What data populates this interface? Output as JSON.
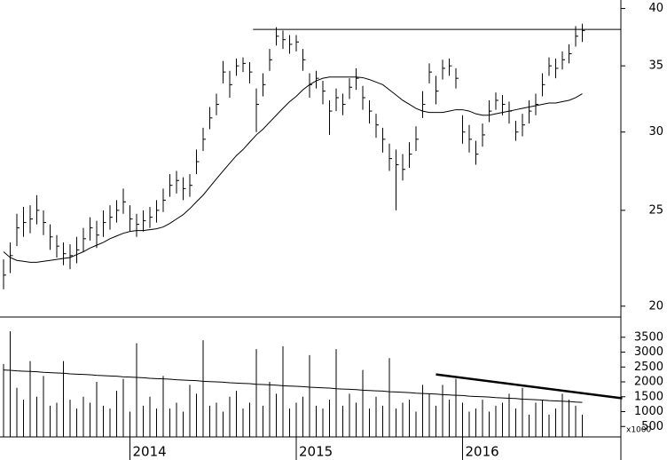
{
  "chart_data": [
    {
      "type": "ohlc",
      "log": true,
      "color": "#000000",
      "ylim": [
        19.5,
        40.8
      ],
      "yticks": [
        20,
        25,
        30,
        35,
        40
      ],
      "high": [
        22.3,
        23.2,
        24.8,
        25.2,
        25.3,
        25.9,
        25,
        24.2,
        23.6,
        23.2,
        23.1,
        23.5,
        24,
        24.6,
        24.4,
        25,
        25.3,
        25.6,
        26.3,
        25.3,
        24.8,
        25,
        25.2,
        25.6,
        26.3,
        27.2,
        27.4,
        27,
        27.2,
        28.8,
        30.3,
        31.8,
        32.8,
        35.4,
        34.6,
        35.6,
        35.7,
        35.3,
        33.2,
        34.4,
        36.4,
        38.3,
        38,
        37.6,
        37.6,
        36.4,
        34.4,
        34.6,
        33.8,
        32.3,
        33.2,
        32.8,
        34,
        34.8,
        33.4,
        32.3,
        31.3,
        30.3,
        29.2,
        28.8,
        28.5,
        29.3,
        30.4,
        33,
        35.2,
        34.2,
        35.5,
        35.6,
        34.8,
        31.2,
        30.5,
        29.4,
        30.6,
        32.3,
        32.9,
        32.7,
        32.2,
        30.8,
        31.3,
        32.3,
        32.8,
        34.4,
        35.7,
        35.6,
        36.2,
        36.8,
        38.4,
        38.6
      ],
      "low": [
        20.8,
        21.6,
        23,
        23.5,
        23.7,
        24.2,
        23.6,
        22.8,
        22.4,
        22,
        21.8,
        22.1,
        22.7,
        23.3,
        22.9,
        23.5,
        23.9,
        24.3,
        24.8,
        23.8,
        23.5,
        23.8,
        24,
        24.3,
        24.9,
        25.8,
        26,
        25.6,
        25.8,
        27.2,
        28.7,
        30.2,
        31.2,
        33.6,
        32.5,
        34.2,
        34.5,
        33.6,
        30,
        32.6,
        34.6,
        36.7,
        36.4,
        36,
        36.2,
        34.6,
        32.5,
        33.2,
        32,
        29.8,
        31.5,
        31.2,
        32.4,
        33.1,
        31.6,
        30.6,
        29.6,
        28.6,
        27.4,
        25,
        26.8,
        27.6,
        28.7,
        31,
        33.6,
        32,
        33.9,
        34.2,
        33.2,
        29.2,
        28.6,
        27.8,
        29,
        30.7,
        31.6,
        31.2,
        30.6,
        29.4,
        29.7,
        30.6,
        31.2,
        32.6,
        34.2,
        34,
        34.7,
        35.2,
        36.6,
        37
      ],
      "close": [
        21.5,
        22.5,
        24,
        24.3,
        24.5,
        25,
        24.3,
        23.5,
        23,
        22.6,
        22.5,
        22.8,
        23.4,
        24,
        23.6,
        24.3,
        24.6,
        25,
        25.5,
        24.5,
        24.2,
        24.4,
        24.6,
        25,
        25.6,
        26.5,
        26.8,
        26.3,
        26.5,
        28,
        29.5,
        31,
        32,
        34.5,
        33.5,
        35,
        35.2,
        34.5,
        32,
        33.5,
        35.5,
        37.5,
        37.2,
        36.8,
        37,
        35.5,
        33.5,
        34,
        33,
        31.5,
        32.5,
        32,
        33.3,
        34,
        32.5,
        31.5,
        30.5,
        29.5,
        28.2,
        27.8,
        27.5,
        28.5,
        29.5,
        32,
        34.5,
        33,
        34.8,
        35,
        34,
        30,
        29.5,
        28.5,
        29.8,
        31.5,
        32.3,
        32,
        31.5,
        30,
        30.5,
        31.5,
        32,
        33.5,
        35,
        34.8,
        35.5,
        36,
        37.5,
        38
      ],
      "moving_average": [
        22.7,
        22.4,
        22.25,
        22.2,
        22.15,
        22.15,
        22.2,
        22.25,
        22.3,
        22.35,
        22.4,
        22.55,
        22.7,
        22.9,
        23.05,
        23.2,
        23.4,
        23.55,
        23.7,
        23.8,
        23.85,
        23.85,
        23.9,
        23.95,
        24.05,
        24.25,
        24.5,
        24.75,
        25.1,
        25.5,
        25.9,
        26.4,
        26.9,
        27.4,
        27.9,
        28.4,
        28.8,
        29.3,
        29.8,
        30.2,
        30.7,
        31.2,
        31.7,
        32.2,
        32.6,
        33.1,
        33.5,
        33.8,
        34,
        34.1,
        34.1,
        34.1,
        34.1,
        34.1,
        34.05,
        33.9,
        33.7,
        33.5,
        33.1,
        32.7,
        32.3,
        32,
        31.7,
        31.5,
        31.4,
        31.4,
        31.4,
        31.5,
        31.6,
        31.6,
        31.5,
        31.3,
        31.2,
        31.2,
        31.3,
        31.4,
        31.5,
        31.6,
        31.7,
        31.8,
        31.9,
        32,
        32.1,
        32.1,
        32.2,
        32.3,
        32.5,
        32.8
      ],
      "resistance": {
        "value": 38.1,
        "from": 37.5
      }
    },
    {
      "type": "bar",
      "color": "#000000",
      "categories": [
        null,
        null,
        null,
        null,
        null,
        null,
        null,
        null,
        null,
        null,
        null,
        null,
        null,
        null,
        null,
        null,
        null,
        null,
        null,
        "2014",
        null,
        null,
        null,
        null,
        null,
        null,
        null,
        null,
        null,
        null,
        null,
        null,
        null,
        null,
        null,
        null,
        null,
        null,
        null,
        null,
        null,
        null,
        null,
        null,
        "2015",
        null,
        null,
        null,
        null,
        null,
        null,
        null,
        null,
        null,
        null,
        null,
        null,
        null,
        null,
        null,
        null,
        null,
        null,
        null,
        null,
        null,
        null,
        null,
        null,
        "2016",
        null,
        null,
        null,
        null,
        null,
        null,
        null,
        null,
        null,
        null,
        null,
        null,
        null,
        null,
        null,
        null,
        null,
        null
      ],
      "ylim": [
        150,
        4150
      ],
      "yticks": [
        500,
        1000,
        1500,
        2000,
        2500,
        3000,
        3500
      ],
      "unit_label": "x1000",
      "values": [
        2600,
        3700,
        1800,
        1400,
        2700,
        1500,
        2200,
        1200,
        1300,
        2700,
        1400,
        1100,
        1500,
        1300,
        2000,
        1200,
        1100,
        1700,
        2100,
        1000,
        3300,
        1200,
        1500,
        1100,
        2200,
        1100,
        1300,
        1000,
        1900,
        1600,
        3400,
        1200,
        1300,
        1000,
        1500,
        1700,
        1100,
        1300,
        3100,
        1200,
        2000,
        1600,
        3200,
        1100,
        1300,
        1500,
        2900,
        1200,
        1100,
        1400,
        3100,
        1200,
        1600,
        1300,
        2400,
        1100,
        1500,
        1200,
        2800,
        1100,
        1300,
        1400,
        1000,
        1900,
        1600,
        1200,
        1900,
        1400,
        2100,
        1300,
        1000,
        1100,
        1400,
        1000,
        1200,
        1300,
        1600,
        1100,
        1800,
        900,
        1300,
        1400,
        900,
        1100,
        1600,
        1400,
        1200,
        900
      ],
      "moving_average": [
        2400,
        2390,
        2370,
        2360,
        2350,
        2340,
        2320,
        2310,
        2300,
        2290,
        2270,
        2260,
        2250,
        2240,
        2220,
        2210,
        2200,
        2190,
        2170,
        2160,
        2150,
        2140,
        2120,
        2110,
        2100,
        2090,
        2070,
        2060,
        2050,
        2040,
        2020,
        2010,
        2000,
        1990,
        1970,
        1960,
        1950,
        1940,
        1920,
        1910,
        1900,
        1890,
        1870,
        1860,
        1850,
        1840,
        1820,
        1810,
        1800,
        1790,
        1770,
        1760,
        1750,
        1740,
        1720,
        1710,
        1700,
        1690,
        1670,
        1660,
        1650,
        1640,
        1620,
        1610,
        1600,
        1590,
        1570,
        1560,
        1550,
        1540,
        1520,
        1510,
        1500,
        1490,
        1470,
        1460,
        1450,
        1440,
        1420,
        1410,
        1400,
        1390,
        1370,
        1360,
        1350,
        1340,
        1320,
        1310
      ],
      "trendline": {
        "from": [
          65,
          2250
        ],
        "to": [
          93,
          1450
        ]
      }
    }
  ]
}
